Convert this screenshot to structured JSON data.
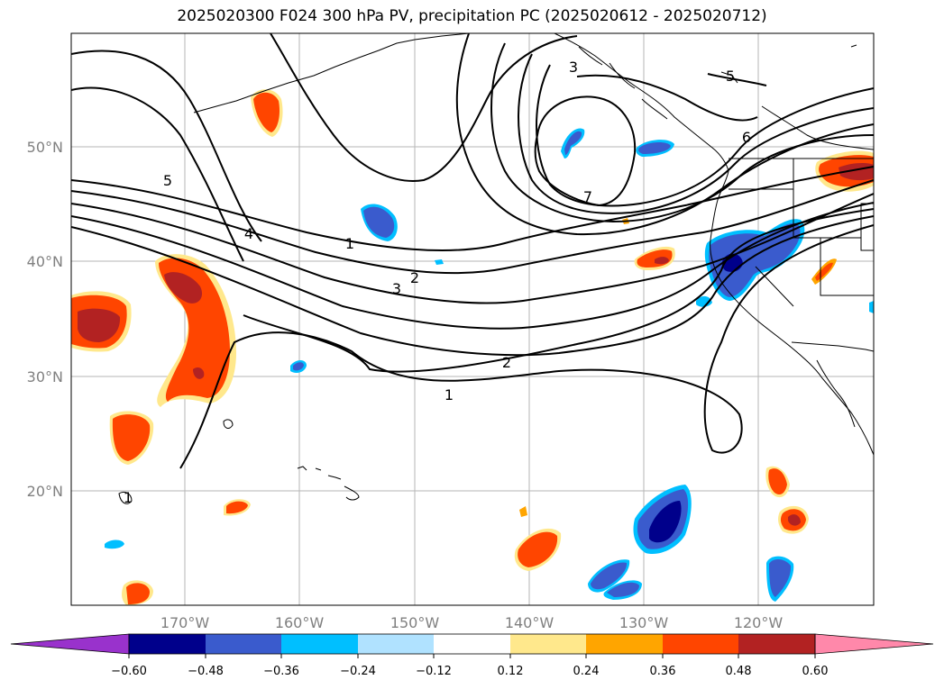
{
  "title": "2025020300 F024 300 hPa PV, precipitation PC (2025020612 - 2025020712)",
  "map": {
    "lon_labels": [
      "170°W",
      "160°W",
      "150°W",
      "140°W",
      "130°W",
      "120°W"
    ],
    "lat_labels": [
      "50°N",
      "40°N",
      "30°N",
      "20°N"
    ]
  },
  "contour_labels": [
    "5",
    "4",
    "1",
    "2",
    "3",
    "2",
    "1",
    "5",
    "6",
    "3",
    "7",
    "1"
  ],
  "colorbar": {
    "ticks": [
      "−0.60",
      "−0.48",
      "−0.36",
      "−0.24",
      "−0.12",
      "0.12",
      "0.24",
      "0.36",
      "0.48",
      "0.60"
    ],
    "colors": {
      "below_min": "#9932cc",
      "bins": [
        "#00008b",
        "#3a5bcd",
        "#00bfff",
        "#b0e2ff",
        "#ffffff",
        "#ffe88c",
        "#ffa500",
        "#ff4500",
        "#b22222"
      ],
      "above_max": "#ff88aa"
    }
  }
}
